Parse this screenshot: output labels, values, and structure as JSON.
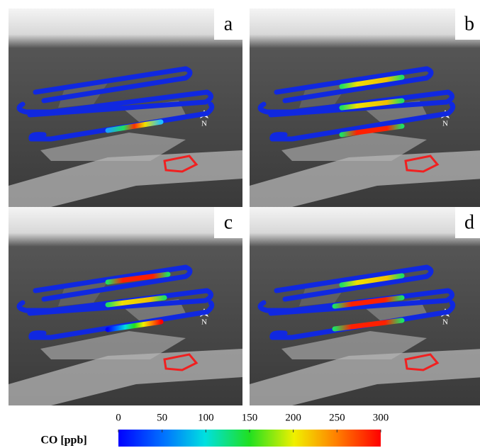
{
  "panels": [
    {
      "label": "a",
      "north": "N"
    },
    {
      "label": "b",
      "north": "N"
    },
    {
      "label": "c",
      "north": "N"
    },
    {
      "label": "d",
      "north": "N"
    }
  ],
  "colorbar": {
    "label": "CO [ppb]",
    "lim": [
      0,
      300
    ],
    "ticks": [
      0,
      50,
      100,
      150,
      200,
      250,
      300
    ]
  }
}
